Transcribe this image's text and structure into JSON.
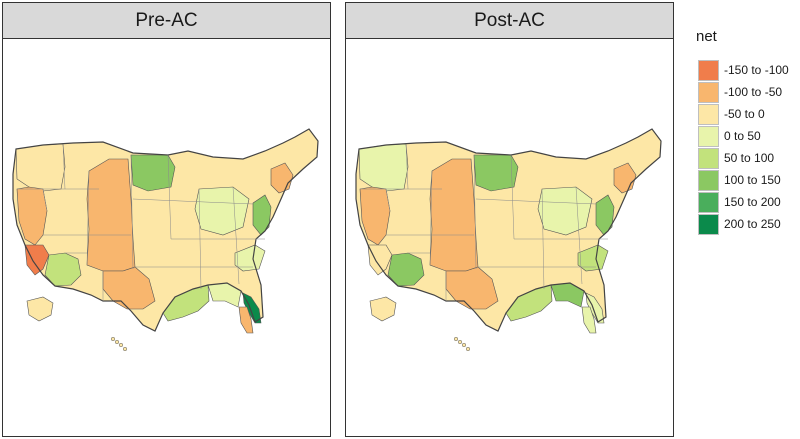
{
  "legend": {
    "title": "net",
    "items": [
      {
        "label": "-150 to -100",
        "color": "#f07d4b"
      },
      {
        "label": "-100 to -50",
        "color": "#f8b66e"
      },
      {
        "label": "-50 to 0",
        "color": "#fde7a6"
      },
      {
        "label": "0 to 50",
        "color": "#e8f4ab"
      },
      {
        "label": "50 to 100",
        "color": "#c2e27c"
      },
      {
        "label": "100 to 150",
        "color": "#8bc862"
      },
      {
        "label": "150 to 200",
        "color": "#4aae5c"
      },
      {
        "label": "200 to 250",
        "color": "#0b8a4b"
      }
    ]
  },
  "panels": [
    {
      "title": "Pre-AC",
      "regions": [
        {
          "name": "base",
          "class": "-50 to 0"
        },
        {
          "name": "pacific-northwest",
          "class": "-50 to 0"
        },
        {
          "name": "northern-california",
          "class": "-100 to -50"
        },
        {
          "name": "southern-california",
          "class": "-150 to -100"
        },
        {
          "name": "arizona",
          "class": "50 to 100"
        },
        {
          "name": "great-plains-corridor",
          "class": "-100 to -50"
        },
        {
          "name": "upper-plains",
          "class": "100 to 150"
        },
        {
          "name": "southwest-plains",
          "class": "-100 to -50"
        },
        {
          "name": "gulf-coast",
          "class": "50 to 100"
        },
        {
          "name": "south-georgia",
          "class": "0 to 50"
        },
        {
          "name": "east-florida",
          "class": "200 to 250"
        },
        {
          "name": "west-florida",
          "class": "-100 to -50"
        },
        {
          "name": "appalachia",
          "class": "100 to 150"
        },
        {
          "name": "new-york",
          "class": "-100 to -50"
        },
        {
          "name": "midwest",
          "class": "0 to 50"
        },
        {
          "name": "carolinas",
          "class": "0 to 50"
        }
      ]
    },
    {
      "title": "Post-AC",
      "regions": [
        {
          "name": "base",
          "class": "-50 to 0"
        },
        {
          "name": "pacific-northwest",
          "class": "0 to 50"
        },
        {
          "name": "northern-california",
          "class": "-100 to -50"
        },
        {
          "name": "southern-california",
          "class": "-50 to 0"
        },
        {
          "name": "arizona",
          "class": "100 to 150"
        },
        {
          "name": "great-plains-corridor",
          "class": "-100 to -50"
        },
        {
          "name": "upper-plains",
          "class": "100 to 150"
        },
        {
          "name": "southwest-plains",
          "class": "-100 to -50"
        },
        {
          "name": "gulf-coast",
          "class": "50 to 100"
        },
        {
          "name": "south-georgia",
          "class": "100 to 150"
        },
        {
          "name": "east-florida",
          "class": "0 to 50"
        },
        {
          "name": "west-florida",
          "class": "0 to 50"
        },
        {
          "name": "appalachia",
          "class": "100 to 150"
        },
        {
          "name": "new-york",
          "class": "-100 to -50"
        },
        {
          "name": "midwest",
          "class": "0 to 50"
        },
        {
          "name": "carolinas",
          "class": "50 to 100"
        }
      ]
    }
  ]
}
